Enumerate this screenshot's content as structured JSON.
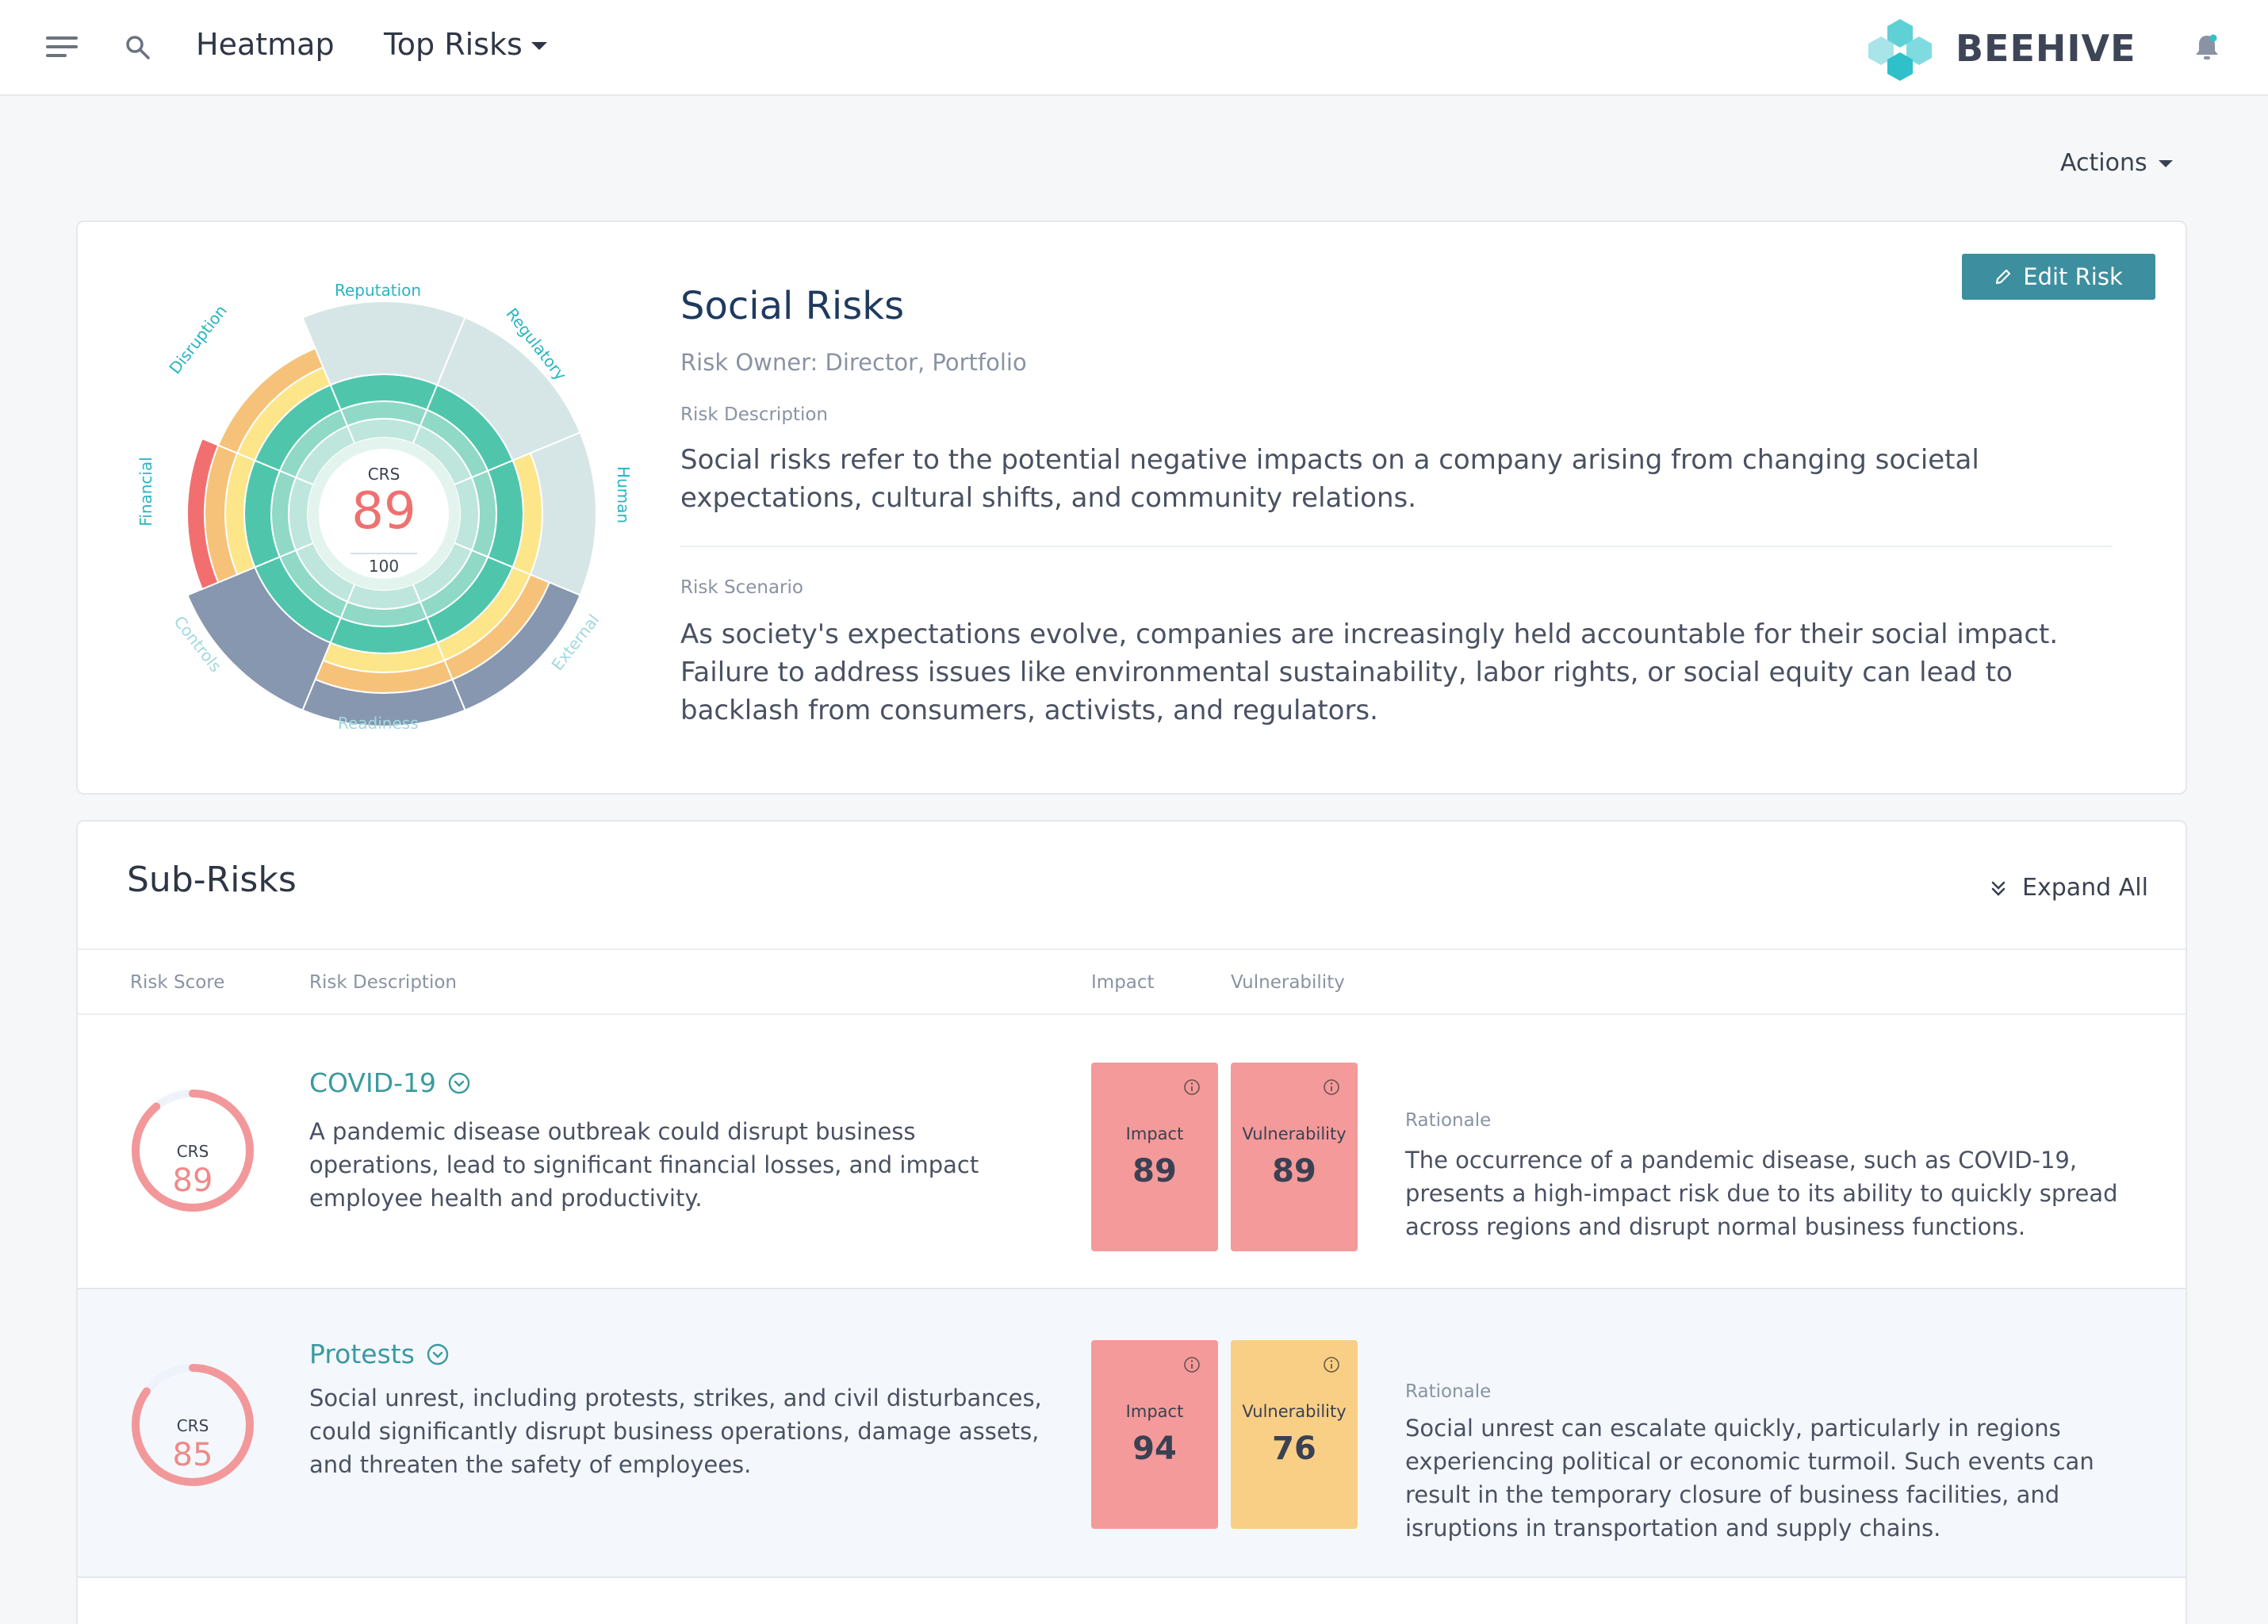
{
  "nav": {
    "heatmap_label": "Heatmap",
    "top_risks_label": "Top Risks",
    "brand": "BEEHIVE"
  },
  "actions_label": "Actions",
  "risk": {
    "title": "Social Risks",
    "owner": "Risk Owner: Director, Portfolio",
    "description_label": "Risk Description",
    "description": "Social risks refer to the potential negative impacts on a company arising from changing societal expectations, cultural shifts, and community relations.",
    "scenario_label": "Risk Scenario",
    "scenario": "As society's expectations evolve, companies are increasingly held accountable for their social impact. Failure to address issues like environmental sustainability, labor rights, or social equity can lead to backlash from consumers, activists, and regulators.",
    "edit_label": "Edit Risk",
    "wheel": {
      "crs_label": "CRS",
      "crs_value": "89",
      "crs_max": "100",
      "segments": [
        {
          "name": "Reputation",
          "label_color": "#27b5c4"
        },
        {
          "name": "Regulatory",
          "label_color": "#27b5c4"
        },
        {
          "name": "Human",
          "label_color": "#27b5c4"
        },
        {
          "name": "External",
          "label_color": "#9fd9de"
        },
        {
          "name": "Readiness",
          "label_color": "#9fd9de"
        },
        {
          "name": "Controls",
          "label_color": "#9fd9de"
        },
        {
          "name": "Financial",
          "label_color": "#27b5c4"
        },
        {
          "name": "Disruption",
          "label_color": "#27b5c4"
        }
      ]
    }
  },
  "subrisks": {
    "title": "Sub-Risks",
    "expand_label": "Expand All",
    "columns": {
      "score": "Risk Score",
      "description": "Risk Description",
      "impact": "Impact",
      "vulnerability": "Vulnerability"
    },
    "items": [
      {
        "name": "COVID-19",
        "crs_label": "CRS",
        "crs": "89",
        "crs_fraction": 0.89,
        "description": "A pandemic disease outbreak could disrupt business operations, lead to significant financial losses, and impact employee health and productivity.",
        "impact_label": "Impact",
        "impact": "89",
        "impact_color": "#f49a9a",
        "vulnerability_label": "Vulnerability",
        "vulnerability": "89",
        "vulnerability_color": "#f49a9a",
        "rationale_label": "Rationale",
        "rationale": "The occurrence of a pandemic disease, such as COVID-19, presents a high-impact risk due to its ability to quickly spread across regions and disrupt normal business functions."
      },
      {
        "name": "Protests",
        "crs_label": "CRS",
        "crs": "85",
        "crs_fraction": 0.85,
        "description": "Social unrest, including protests, strikes, and civil disturbances, could significantly disrupt business operations, damage assets, and threaten the safety of employees.",
        "impact_label": "Impact",
        "impact": "94",
        "impact_color": "#f49a9a",
        "vulnerability_label": "Vulnerability",
        "vulnerability": "76",
        "vulnerability_color": "#f8cf85",
        "rationale_label": "Rationale",
        "rationale": "Social unrest can escalate quickly, particularly in regions experiencing political or economic turmoil. Such events can result in the temporary closure of business facilities, and isruptions in transportation and supply chains."
      }
    ]
  }
}
